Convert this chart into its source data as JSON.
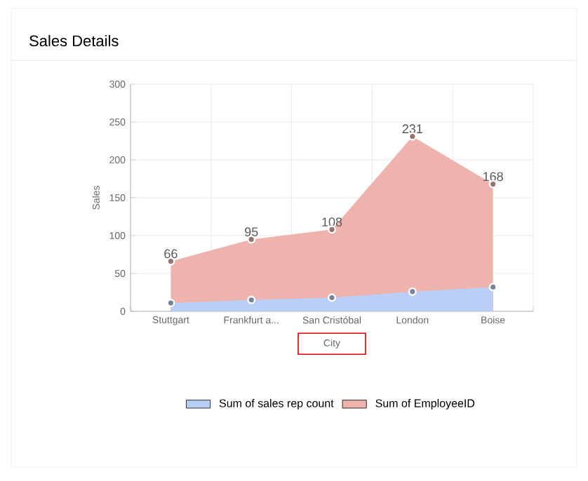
{
  "chart_data": {
    "type": "area",
    "title": "Sales Details",
    "xlabel": "City",
    "ylabel": "Sales",
    "categories": [
      "Stuttgart",
      "Frankfurt a...",
      "San Cristóbal",
      "London",
      "Boise"
    ],
    "series": [
      {
        "name": "Sum of sales rep count",
        "color": "#b9cff7",
        "values": [
          11,
          15,
          18,
          26,
          32
        ]
      },
      {
        "name": "Sum of EmployeeID",
        "color": "#efb3ad",
        "values": [
          66,
          95,
          108,
          231,
          168
        ],
        "value_labels": [
          "66",
          "95",
          "108",
          "231",
          "168"
        ]
      }
    ],
    "ylim": [
      0,
      300
    ],
    "yticks": [
      0,
      50,
      100,
      150,
      200,
      250,
      300
    ],
    "grid": true,
    "legend": "bottom",
    "marker": "circle"
  }
}
